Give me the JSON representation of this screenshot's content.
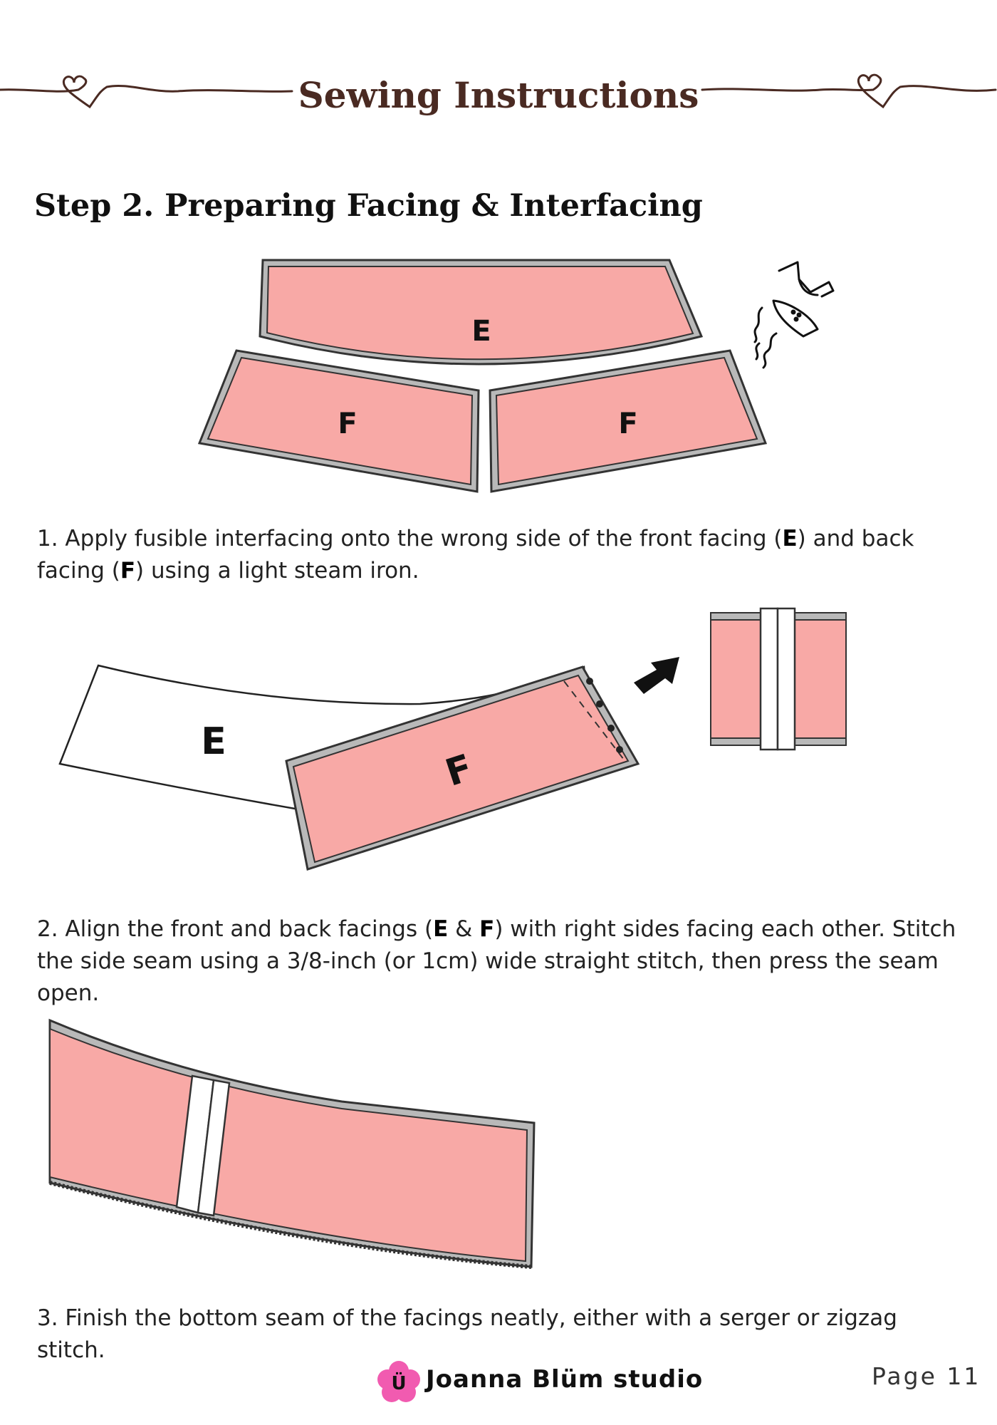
{
  "header": {
    "title": "Sewing Instructions"
  },
  "step": {
    "title": "Step 2. Preparing Facing & Interfacing"
  },
  "diagram1": {
    "label_e": "E",
    "label_f_left": "F",
    "label_f_right": "F"
  },
  "diagram2": {
    "label_e": "E",
    "label_f": "F"
  },
  "instructions": [
    {
      "parts": [
        "1. Apply fusible interfacing onto the wrong side of the front facing (",
        "E",
        ") and back facing (",
        "F",
        ") using a light steam iron."
      ]
    },
    {
      "parts": [
        "2. Align the front and back facings (",
        "E",
        " & ",
        "F",
        ") with right sides facing each other. Stitch the side seam using a 3/8-inch (or 1cm) wide straight stitch, then press the seam open."
      ]
    },
    {
      "parts": [
        "3. Finish the bottom seam of the facings neatly, either with a serger or zigzag stitch."
      ]
    }
  ],
  "footer": {
    "logo_letter": "Ü",
    "brand": "Joanna Blüm studio",
    "page": "Page 11"
  },
  "colors": {
    "fabric_pink": "#f8a9a6",
    "seam_gray": "#b9b9b9",
    "outline": "#333333",
    "title_brown": "#4a2a22",
    "logo_pink": "#f15bb0"
  },
  "icons": [
    "heart-swirl-icon",
    "steam-iron-icon",
    "arrow-icon",
    "flower-logo-icon"
  ]
}
